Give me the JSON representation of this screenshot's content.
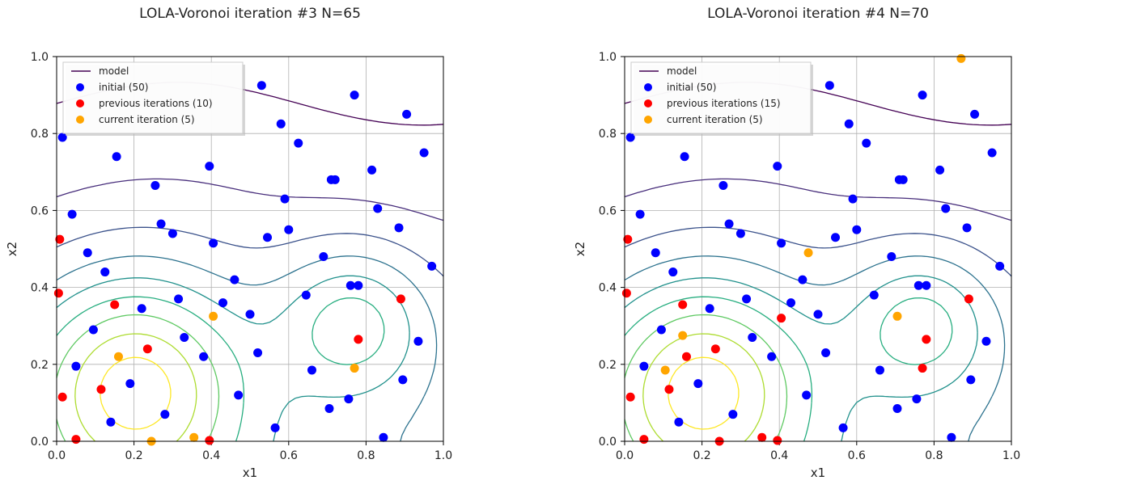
{
  "chart_data": [
    {
      "type": "scatter",
      "title": "LOLA-Voronoi iteration #3 N=65",
      "xlabel": "x1",
      "ylabel": "x2",
      "xlim": [
        0.0,
        1.0
      ],
      "ylim": [
        0.0,
        1.0
      ],
      "xticks": [
        "0.0",
        "0.2",
        "0.4",
        "0.6",
        "0.8",
        "1.0"
      ],
      "yticks": [
        "0.0",
        "0.2",
        "0.4",
        "0.6",
        "0.8",
        "1.0"
      ],
      "grid": true,
      "legend_position": "top-left",
      "contour_label": "model",
      "series": [
        {
          "name": "initial (50)",
          "color": "#0000ff",
          "points": [
            [
              0.015,
              0.79
            ],
            [
              0.53,
              0.925
            ],
            [
              0.77,
              0.9
            ],
            [
              0.905,
              0.85
            ],
            [
              0.95,
              0.75
            ],
            [
              0.155,
              0.74
            ],
            [
              0.395,
              0.715
            ],
            [
              0.815,
              0.705
            ],
            [
              0.58,
              0.825
            ],
            [
              0.625,
              0.775
            ],
            [
              0.72,
              0.68
            ],
            [
              0.255,
              0.665
            ],
            [
              0.59,
              0.63
            ],
            [
              0.04,
              0.59
            ],
            [
              0.83,
              0.605
            ],
            [
              0.27,
              0.565
            ],
            [
              0.885,
              0.555
            ],
            [
              0.545,
              0.53
            ],
            [
              0.405,
              0.515
            ],
            [
              0.08,
              0.49
            ],
            [
              0.69,
              0.48
            ],
            [
              0.97,
              0.455
            ],
            [
              0.125,
              0.44
            ],
            [
              0.46,
              0.42
            ],
            [
              0.78,
              0.405
            ],
            [
              0.645,
              0.38
            ],
            [
              0.315,
              0.37
            ],
            [
              0.22,
              0.345
            ],
            [
              0.5,
              0.33
            ],
            [
              0.095,
              0.29
            ],
            [
              0.33,
              0.27
            ],
            [
              0.935,
              0.26
            ],
            [
              0.52,
              0.23
            ],
            [
              0.38,
              0.22
            ],
            [
              0.05,
              0.195
            ],
            [
              0.66,
              0.185
            ],
            [
              0.895,
              0.16
            ],
            [
              0.19,
              0.15
            ],
            [
              0.47,
              0.12
            ],
            [
              0.755,
              0.11
            ],
            [
              0.705,
              0.085
            ],
            [
              0.28,
              0.07
            ],
            [
              0.14,
              0.05
            ],
            [
              0.565,
              0.035
            ],
            [
              0.845,
              0.01
            ],
            [
              0.76,
              0.405
            ],
            [
              0.6,
              0.55
            ],
            [
              0.43,
              0.36
            ],
            [
              0.71,
              0.68
            ],
            [
              0.3,
              0.54
            ]
          ]
        },
        {
          "name": "previous iterations (10)",
          "color": "#ff0000",
          "points": [
            [
              0.008,
              0.525
            ],
            [
              0.005,
              0.385
            ],
            [
              0.15,
              0.355
            ],
            [
              0.89,
              0.37
            ],
            [
              0.235,
              0.24
            ],
            [
              0.78,
              0.265
            ],
            [
              0.115,
              0.135
            ],
            [
              0.015,
              0.115
            ],
            [
              0.05,
              0.005
            ],
            [
              0.395,
              0.002
            ]
          ]
        },
        {
          "name": "current iteration (5)",
          "color": "#ffa500",
          "points": [
            [
              0.405,
              0.325
            ],
            [
              0.16,
              0.22
            ],
            [
              0.77,
              0.19
            ],
            [
              0.355,
              0.01
            ],
            [
              0.245,
              0.0
            ]
          ]
        }
      ]
    },
    {
      "type": "scatter",
      "title": "LOLA-Voronoi iteration #4 N=70",
      "xlabel": "x1",
      "ylabel": "x2",
      "xlim": [
        0.0,
        1.0
      ],
      "ylim": [
        0.0,
        1.0
      ],
      "xticks": [
        "0.0",
        "0.2",
        "0.4",
        "0.6",
        "0.8",
        "1.0"
      ],
      "yticks": [
        "0.0",
        "0.2",
        "0.4",
        "0.6",
        "0.8",
        "1.0"
      ],
      "grid": true,
      "legend_position": "top-left",
      "contour_label": "model",
      "series": [
        {
          "name": "initial (50)",
          "color": "#0000ff",
          "points": [
            [
              0.015,
              0.79
            ],
            [
              0.53,
              0.925
            ],
            [
              0.77,
              0.9
            ],
            [
              0.905,
              0.85
            ],
            [
              0.95,
              0.75
            ],
            [
              0.155,
              0.74
            ],
            [
              0.395,
              0.715
            ],
            [
              0.815,
              0.705
            ],
            [
              0.58,
              0.825
            ],
            [
              0.625,
              0.775
            ],
            [
              0.72,
              0.68
            ],
            [
              0.255,
              0.665
            ],
            [
              0.59,
              0.63
            ],
            [
              0.04,
              0.59
            ],
            [
              0.83,
              0.605
            ],
            [
              0.27,
              0.565
            ],
            [
              0.885,
              0.555
            ],
            [
              0.545,
              0.53
            ],
            [
              0.405,
              0.515
            ],
            [
              0.08,
              0.49
            ],
            [
              0.69,
              0.48
            ],
            [
              0.97,
              0.455
            ],
            [
              0.125,
              0.44
            ],
            [
              0.46,
              0.42
            ],
            [
              0.78,
              0.405
            ],
            [
              0.645,
              0.38
            ],
            [
              0.315,
              0.37
            ],
            [
              0.22,
              0.345
            ],
            [
              0.5,
              0.33
            ],
            [
              0.095,
              0.29
            ],
            [
              0.33,
              0.27
            ],
            [
              0.935,
              0.26
            ],
            [
              0.52,
              0.23
            ],
            [
              0.38,
              0.22
            ],
            [
              0.05,
              0.195
            ],
            [
              0.66,
              0.185
            ],
            [
              0.895,
              0.16
            ],
            [
              0.19,
              0.15
            ],
            [
              0.47,
              0.12
            ],
            [
              0.755,
              0.11
            ],
            [
              0.705,
              0.085
            ],
            [
              0.28,
              0.07
            ],
            [
              0.14,
              0.05
            ],
            [
              0.565,
              0.035
            ],
            [
              0.845,
              0.01
            ],
            [
              0.76,
              0.405
            ],
            [
              0.6,
              0.55
            ],
            [
              0.43,
              0.36
            ],
            [
              0.71,
              0.68
            ],
            [
              0.3,
              0.54
            ]
          ]
        },
        {
          "name": "previous iterations (15)",
          "color": "#ff0000",
          "points": [
            [
              0.008,
              0.525
            ],
            [
              0.005,
              0.385
            ],
            [
              0.15,
              0.355
            ],
            [
              0.89,
              0.37
            ],
            [
              0.235,
              0.24
            ],
            [
              0.78,
              0.265
            ],
            [
              0.115,
              0.135
            ],
            [
              0.015,
              0.115
            ],
            [
              0.05,
              0.005
            ],
            [
              0.395,
              0.002
            ],
            [
              0.405,
              0.32
            ],
            [
              0.16,
              0.22
            ],
            [
              0.77,
              0.19
            ],
            [
              0.355,
              0.01
            ],
            [
              0.245,
              0.0
            ]
          ]
        },
        {
          "name": "current iteration (5)",
          "color": "#ffa500",
          "points": [
            [
              0.475,
              0.49
            ],
            [
              0.15,
              0.275
            ],
            [
              0.705,
              0.325
            ],
            [
              0.105,
              0.185
            ],
            [
              0.87,
              0.995
            ]
          ]
        }
      ]
    }
  ]
}
